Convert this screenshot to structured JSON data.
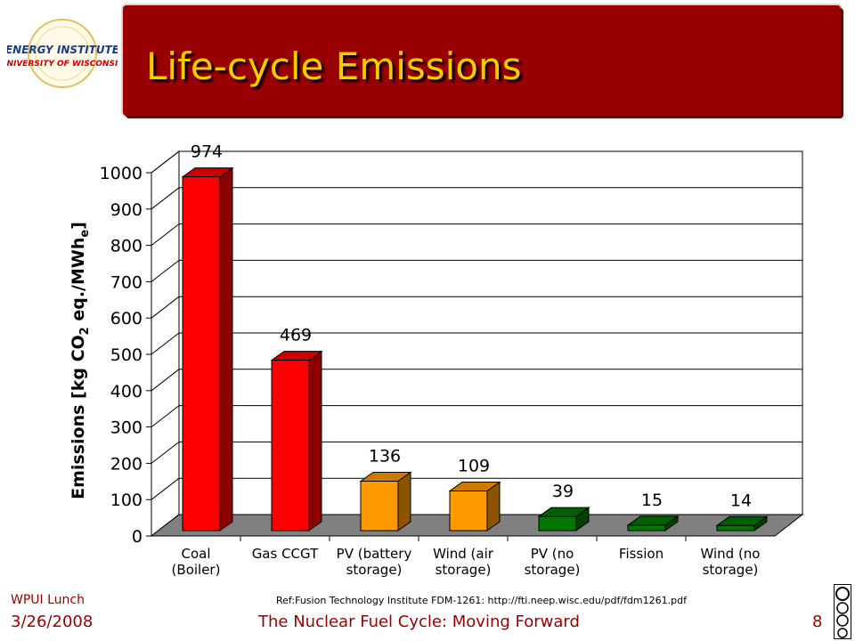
{
  "slide": {
    "title": "Life-cycle Emissions",
    "footer_left_top": "WPUI Lunch",
    "footer_date": "3/26/2008",
    "footer_center": "The Nuclear Fuel Cycle: Moving Forward",
    "page_number": "8",
    "reference": "Ref:Fusion Technology Institute FDM-1261: http://fti.neep.wisc.edu/pdf/fdm1261.pdf"
  },
  "logo": {
    "line1": "ENERGY INSTITUTE",
    "line2": "UNIVERSITY OF WISCONSIN"
  },
  "license_badge": {
    "icon": "creative-commons-by-nc-sa-icon",
    "text": "cc BY NC SA"
  },
  "colors": {
    "title_bar": "#990000",
    "title_text": "#ffcc00",
    "footer_text": "#990000",
    "coal_gas": "#ff0000",
    "solar_wind_storage": "#ff9900",
    "low_carbon": "#007700"
  },
  "chart_data": {
    "type": "bar",
    "style": "3d",
    "title": "",
    "ylabel": "Emissions [kg CO",
    "ylabel_sub": "2",
    "ylabel_mid": " eq./MWh",
    "ylabel_sub2": "e",
    "ylabel_end": "]",
    "ylim": [
      0,
      1000
    ],
    "yticks": [
      0,
      100,
      200,
      300,
      400,
      500,
      600,
      700,
      800,
      900,
      1000
    ],
    "grid": true,
    "legend": "none",
    "categories": [
      [
        "Coal",
        "(Boiler)"
      ],
      [
        "Gas CCGT"
      ],
      [
        "PV (battery",
        "storage)"
      ],
      [
        "Wind (air",
        "storage)"
      ],
      [
        "PV (no",
        "storage)"
      ],
      [
        "Fission"
      ],
      [
        "Wind (no",
        "storage)"
      ]
    ],
    "values": [
      974,
      469,
      136,
      109,
      39,
      15,
      14
    ],
    "data_labels": [
      "974",
      "469",
      "136",
      "109",
      "39",
      "15",
      "14"
    ],
    "bar_colors": [
      "#ff0000",
      "#ff0000",
      "#ff9900",
      "#ff9900",
      "#007700",
      "#007700",
      "#007700"
    ]
  }
}
